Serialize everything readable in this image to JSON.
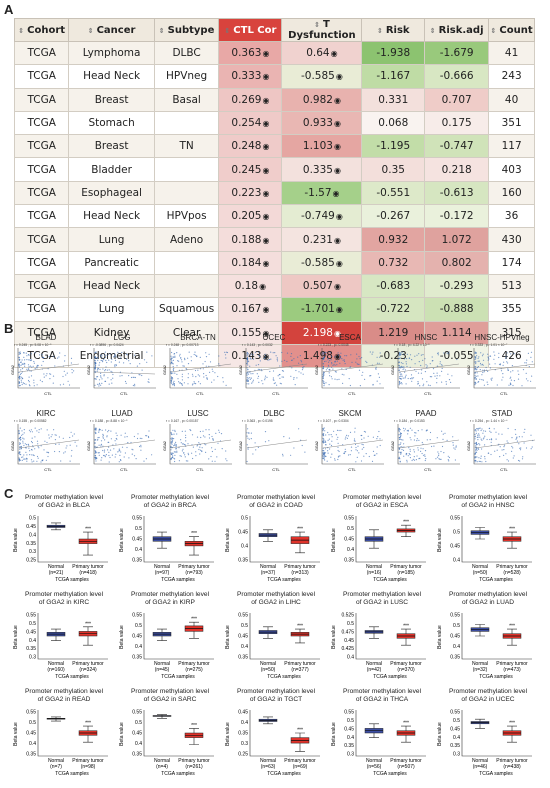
{
  "panel_labels": {
    "a": "A",
    "b": "B",
    "c": "C"
  },
  "table": {
    "headers": [
      "Cohort",
      "Cancer",
      "Subtype",
      "CTL Cor",
      "T Dysfunction",
      "Risk",
      "Risk.adj",
      "Count"
    ],
    "rows": [
      [
        "TCGA",
        "Lymphoma",
        "DLBC",
        "0.363",
        "0.64",
        "-1.938",
        "-1.679",
        "41"
      ],
      [
        "TCGA",
        "Head Neck",
        "HPVneg",
        "0.333",
        "-0.585",
        "-1.167",
        "-0.666",
        "243"
      ],
      [
        "TCGA",
        "Breast",
        "Basal",
        "0.269",
        "0.982",
        "0.331",
        "0.707",
        "40"
      ],
      [
        "TCGA",
        "Stomach",
        "",
        "0.254",
        "0.933",
        "0.068",
        "0.175",
        "351"
      ],
      [
        "TCGA",
        "Breast",
        "TN",
        "0.248",
        "1.103",
        "-1.195",
        "-0.747",
        "117"
      ],
      [
        "TCGA",
        "Bladder",
        "",
        "0.245",
        "0.335",
        "0.35",
        "0.218",
        "403"
      ],
      [
        "TCGA",
        "Esophageal",
        "",
        "0.223",
        "-1.57",
        "-0.551",
        "-0.613",
        "160"
      ],
      [
        "TCGA",
        "Head Neck",
        "HPVpos",
        "0.205",
        "-0.749",
        "-0.267",
        "-0.172",
        "36"
      ],
      [
        "TCGA",
        "Lung",
        "Adeno",
        "0.188",
        "0.231",
        "0.932",
        "1.072",
        "430"
      ],
      [
        "TCGA",
        "Pancreatic",
        "",
        "0.184",
        "-0.585",
        "0.732",
        "0.802",
        "174"
      ],
      [
        "TCGA",
        "Head Neck",
        "",
        "0.18",
        "0.507",
        "-0.683",
        "-0.293",
        "513"
      ],
      [
        "TCGA",
        "Lung",
        "Squamous",
        "0.167",
        "-1.701",
        "-0.722",
        "-0.888",
        "355"
      ],
      [
        "TCGA",
        "Kidney",
        "Clear",
        "0.155",
        "2.198",
        "1.219",
        "1.114",
        "315"
      ],
      [
        "TCGA",
        "Endometrial",
        "",
        "0.143",
        "1.498",
        "-0.23",
        "-0.055",
        "426"
      ]
    ],
    "colors": {
      "ctl": [
        "#e8a8a6",
        "#eab4b2",
        "#eec6c4",
        "#efcac8",
        "#efcbc9",
        "#f0cdcb",
        "#f2d4d2",
        "#f3d9d7",
        "#f4dddb",
        "#f4dedc",
        "#f5e0de",
        "#f5e2e0",
        "#f6e5e3",
        "#f6e7e5"
      ],
      "tdys": [
        "#f0d2cf",
        "#e9ecd6",
        "#e8b2ae",
        "#e9b7b3",
        "#e5a6a2",
        "#f3e1dd",
        "#a5d08a",
        "#e4ecd2",
        "#f4e4e0",
        "#e9ecd6",
        "#eec8c4",
        "#9ccb7f",
        "#d3433d",
        "#e2908c"
      ],
      "risk": [
        "#8cc370",
        "#bfdca5",
        "#f3e0dc",
        "#f9f3f0",
        "#c2dda8",
        "#f3dfdb",
        "#dde9c9",
        "#eaf1dc",
        "#e2a5a1",
        "#e8b8b4",
        "#d7e7c3",
        "#d6e6c1",
        "#d98c88",
        "#e9eedb"
      ],
      "riskadj": [
        "#99c97c",
        "#d8e7c3",
        "#efccc8",
        "#f7ece9",
        "#d0e3b9",
        "#f5e3e0",
        "#d6e6c1",
        "#eaf1dc",
        "#dfa29e",
        "#e4b2ae",
        "#e0ebce",
        "#cce1b4",
        "#df9e9a",
        "#f1f4e6"
      ]
    }
  },
  "scatter": {
    "xlabel": "CTL",
    "ylabel": "GGA2",
    "panels": [
      {
        "title": "BLAD",
        "stat": "r = 0.245 , p= 5.08 × 10⁻⁵"
      },
      {
        "title": "LGG",
        "stat": "r = -0.0896 , p= 0.0424"
      },
      {
        "title": "BRCA-TN",
        "stat": "r = 0.248 , p= 0.00713"
      },
      {
        "title": "UCEC",
        "stat": "r = 0.143 , p= 0.0032"
      },
      {
        "title": "ESCA",
        "stat": "r = 0.223 , p= 0.0045"
      },
      {
        "title": "HNSC",
        "stat": "r = 0.18 , p= 4.22 × 10⁻⁵"
      },
      {
        "title": "HNSC-HPVneg",
        "stat": "r = 0.333 , p= 1.01 × 10⁻⁷"
      },
      {
        "title": "KIRC",
        "stat": "r = 0.155 , p= 0.00582"
      },
      {
        "title": "LUAD",
        "stat": "r = 0.188 , p= 8.88 × 10⁻⁵"
      },
      {
        "title": "LUSC",
        "stat": "r = 0.167 , p= 0.00157"
      },
      {
        "title": "DLBC",
        "stat": "r = 0.363 , p= 0.0195"
      },
      {
        "title": "SKCM",
        "stat": "r = 0.107 , p= 0.0304"
      },
      {
        "title": "PAAD",
        "stat": "r = 0.184 , p= 0.0153"
      },
      {
        "title": "STAD",
        "stat": "r = 0.254 , p= 1.44 × 10⁻⁶"
      }
    ]
  },
  "boxplots": {
    "ylabel": "Beta value",
    "xlabel": "TCGA samples",
    "normal_label": "Normal",
    "tumor_label": "Primary tumor",
    "sig": "***",
    "title_prefix": "Promoter methylation level",
    "panels": [
      {
        "gene_line": "of GGA2 in BLCA",
        "n_normal": "(n=21)",
        "n_tumor": "(n=418)",
        "yticks": [
          "0.5",
          "0.45",
          "0.4",
          "0.35",
          "0.3",
          "0.25"
        ]
      },
      {
        "gene_line": "of GGA2 in BRCA",
        "n_normal": "(n=97)",
        "n_tumor": "(n=793)",
        "yticks": [
          "0.55",
          "0.5",
          "0.45",
          "0.4",
          "0.35"
        ]
      },
      {
        "gene_line": "of GGA2 in COAD",
        "n_normal": "(n=37)",
        "n_tumor": "(n=313)",
        "yticks": [
          "0.5",
          "0.45",
          "0.4",
          "0.35"
        ]
      },
      {
        "gene_line": "of GGA2 in ESCA",
        "n_normal": "(n=16)",
        "n_tumor": "(n=185)",
        "yticks": [
          "0.55",
          "0.5",
          "0.45",
          "0.4",
          "0.35"
        ]
      },
      {
        "gene_line": "of GGA2 in HNSC",
        "n_normal": "(n=50)",
        "n_tumor": "(n=528)",
        "yticks": [
          "0.55",
          "0.5",
          "0.45",
          "0.4"
        ]
      },
      {
        "gene_line": "of GGA2 in KIRC",
        "n_normal": "(n=160)",
        "n_tumor": "(n=324)",
        "yticks": [
          "0.55",
          "0.5",
          "0.45",
          "0.4",
          "0.35",
          "0.3"
        ]
      },
      {
        "gene_line": "of GGA2 in KIRP",
        "n_normal": "(n=45)",
        "n_tumor": "(n=275)",
        "yticks": [
          "0.55",
          "0.5",
          "0.45",
          "0.4",
          "0.35"
        ]
      },
      {
        "gene_line": "of GGA2 in LIHC",
        "n_normal": "(n=50)",
        "n_tumor": "(n=377)",
        "yticks": [
          "0.55",
          "0.5",
          "0.45",
          "0.4",
          "0.35"
        ]
      },
      {
        "gene_line": "of GGA2 in LUSC",
        "n_normal": "(n=42)",
        "n_tumor": "(n=370)",
        "yticks": [
          "0.525",
          "0.5",
          "0.475",
          "0.45",
          "0.425",
          "0.4"
        ]
      },
      {
        "gene_line": "of GGA2 in LUAD",
        "n_normal": "(n=32)",
        "n_tumor": "(n=473)",
        "yticks": [
          "0.55",
          "0.5",
          "0.45",
          "0.4",
          "0.35"
        ]
      },
      {
        "gene_line": "of GGA2 in READ",
        "n_normal": "(n=7)",
        "n_tumor": "(n=98)",
        "yticks": [
          "0.55",
          "0.5",
          "0.45",
          "0.4",
          "0.35"
        ]
      },
      {
        "gene_line": "of GGA2 in SARC",
        "n_normal": "(n=4)",
        "n_tumor": "(n=261)",
        "yticks": [
          "0.55",
          "0.5",
          "0.45",
          "0.4",
          "0.35"
        ]
      },
      {
        "gene_line": "of GGA2 in TGCT",
        "n_normal": "(n=63)",
        "n_tumor": "(n=69)",
        "yticks": [
          "0.45",
          "0.4",
          "0.35",
          "0.3",
          "0.25"
        ]
      },
      {
        "gene_line": "of GGA2 in THCA",
        "n_normal": "(n=56)",
        "n_tumor": "(n=507)",
        "yticks": [
          "0.55",
          "0.5",
          "0.45",
          "0.4",
          "0.35",
          "0.3"
        ]
      },
      {
        "gene_line": "of GGA2 in UCEC",
        "n_normal": "(n=46)",
        "n_tumor": "(n=438)",
        "yticks": [
          "0.55",
          "0.5",
          "0.45",
          "0.4",
          "0.35",
          "0.3"
        ]
      }
    ]
  }
}
